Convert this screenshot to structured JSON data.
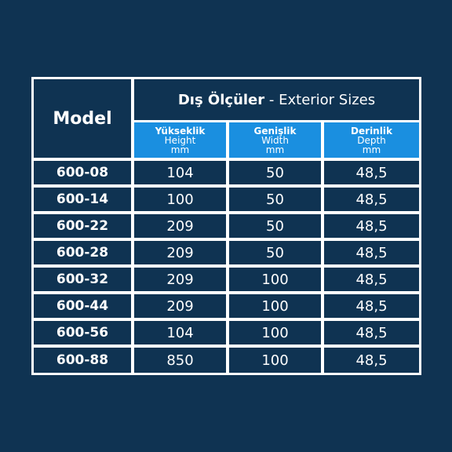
{
  "header": {
    "model": "Model",
    "group_tr": "Dış Ölçüler",
    "group_sep": " - ",
    "group_en": "Exterior Sizes",
    "columns": [
      {
        "tr": "Yükseklik",
        "en": "Height",
        "unit": "mm"
      },
      {
        "tr": "Genişlik",
        "en": "Width",
        "unit": "mm"
      },
      {
        "tr": "Derinlik",
        "en": "Depth",
        "unit": "mm"
      }
    ]
  },
  "rows": [
    {
      "model": "600-08",
      "height": "104",
      "width": "50",
      "depth": "48,5"
    },
    {
      "model": "600-14",
      "height": "100",
      "width": "50",
      "depth": "48,5"
    },
    {
      "model": "600-22",
      "height": "209",
      "width": "50",
      "depth": "48,5"
    },
    {
      "model": "600-28",
      "height": "209",
      "width": "50",
      "depth": "48,5"
    },
    {
      "model": "600-32",
      "height": "209",
      "width": "100",
      "depth": "48,5"
    },
    {
      "model": "600-44",
      "height": "209",
      "width": "100",
      "depth": "48,5"
    },
    {
      "model": "600-56",
      "height": "104",
      "width": "100",
      "depth": "48,5"
    },
    {
      "model": "600-88",
      "height": "850",
      "width": "100",
      "depth": "48,5"
    }
  ],
  "colors": {
    "background": "#0f3352",
    "grid_line": "#ffffff",
    "subheader": "#1a8fe0",
    "text": "#ffffff"
  }
}
